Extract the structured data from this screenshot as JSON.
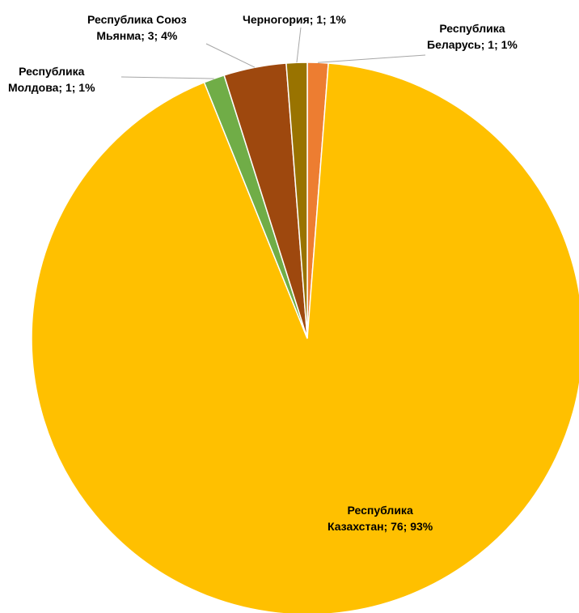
{
  "chart_data": {
    "type": "pie",
    "title": "",
    "slices": [
      {
        "label_line1": "Республика",
        "label_line2": "Беларусь; 1; 1%",
        "name": "Республика Беларусь",
        "value": 1,
        "percent": 1,
        "color": "#ED7D31"
      },
      {
        "label_line1": "Республика",
        "label_line2": "Казахстан; 76; 93%",
        "name": "Республика Казахстан",
        "value": 76,
        "percent": 93,
        "color": "#FFC000"
      },
      {
        "label_line1": "Республика",
        "label_line2": "Молдова; 1; 1%",
        "name": "Республика Молдова",
        "value": 1,
        "percent": 1,
        "color": "#70AD47"
      },
      {
        "label_line1": "Республика Союз",
        "label_line2": "Мьянма; 3; 4%",
        "name": "Республика Союз Мьянма",
        "value": 3,
        "percent": 4,
        "color": "#9E480E"
      },
      {
        "label_line1": "Черногория; 1; 1%",
        "label_line2": "",
        "name": "Черногория",
        "value": 1,
        "percent": 1,
        "color": "#997300"
      }
    ],
    "legend": "none"
  }
}
